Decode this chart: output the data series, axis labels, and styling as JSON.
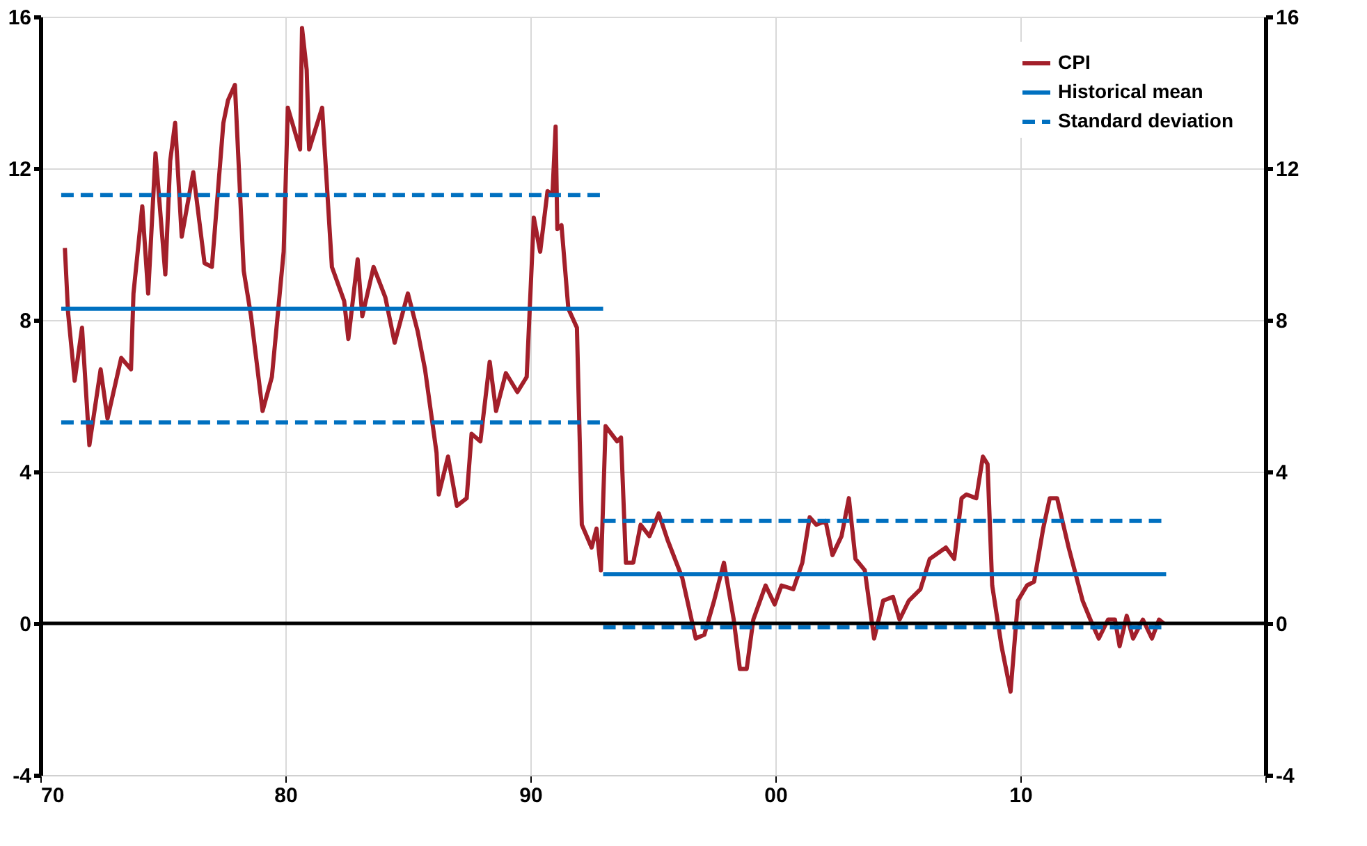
{
  "chart_data": {
    "type": "line",
    "xlim": [
      1970,
      2020
    ],
    "xticks": [
      {
        "value": 1970,
        "label": "70"
      },
      {
        "value": 1980,
        "label": "80"
      },
      {
        "value": 1990,
        "label": "90"
      },
      {
        "value": 2000,
        "label": "00"
      },
      {
        "value": 2010,
        "label": "10"
      },
      {
        "value": 2020,
        "label": null
      }
    ],
    "ylim": [
      -4,
      16
    ],
    "yticks": [
      -4,
      0,
      4,
      8,
      12,
      16
    ],
    "y2lim": [
      -4,
      16
    ],
    "y2ticks": [
      -4,
      0,
      4,
      8,
      12,
      16
    ],
    "grid": true,
    "legend": "top right",
    "marker": "none",
    "ref_lines": [
      {
        "axis": "y",
        "value": 0,
        "label": null,
        "color": "#000000"
      }
    ],
    "series": [
      {
        "name": "CPI",
        "color": "#a31f2a",
        "line_style": "solid",
        "x": [
          1971.0,
          1971.13,
          1971.4,
          1971.7,
          1972.0,
          1972.46,
          1972.74,
          1973.3,
          1973.7,
          1973.8,
          1974.16,
          1974.4,
          1974.7,
          1975.1,
          1975.3,
          1975.5,
          1975.77,
          1976.24,
          1976.7,
          1977.0,
          1977.47,
          1977.66,
          1977.94,
          1978.3,
          1978.6,
          1979.07,
          1979.45,
          1979.93,
          1980.1,
          1980.6,
          1980.68,
          1980.87,
          1980.97,
          1981.5,
          1981.9,
          1982.4,
          1982.57,
          1982.95,
          1983.14,
          1983.6,
          1984.08,
          1984.46,
          1985.0,
          1985.4,
          1985.7,
          1986.17,
          1986.26,
          1986.64,
          1987.0,
          1987.4,
          1987.6,
          1987.96,
          1988.34,
          1988.6,
          1989.0,
          1989.47,
          1989.85,
          1990.14,
          1990.4,
          1990.7,
          1990.9,
          1991.03,
          1991.1,
          1991.27,
          1991.55,
          1991.9,
          1992.1,
          1992.5,
          1992.7,
          1992.88,
          1993.07,
          1993.54,
          1993.7,
          1993.9,
          1994.2,
          1994.5,
          1994.86,
          1995.24,
          1995.6,
          1996.2,
          1996.75,
          1997.1,
          1997.5,
          1997.9,
          1998.3,
          1998.55,
          1998.83,
          1999.1,
          1999.6,
          1999.97,
          2000.25,
          2000.73,
          2001.1,
          2001.4,
          2001.67,
          2002.05,
          2002.33,
          2002.7,
          2003.0,
          2003.27,
          2003.65,
          2004.03,
          2004.4,
          2004.8,
          2005.07,
          2005.45,
          2005.92,
          2006.3,
          2006.96,
          2007.3,
          2007.6,
          2007.8,
          2008.2,
          2008.47,
          2008.66,
          2008.85,
          2009.23,
          2009.6,
          2009.9,
          2010.27,
          2010.56,
          2010.93,
          2011.2,
          2011.5,
          2011.97,
          2012.54,
          2012.92,
          2013.2,
          2013.58,
          2013.86,
          2014.05,
          2014.34,
          2014.6,
          2015.0,
          2015.37,
          2015.66,
          2015.85
        ],
        "values": [
          9.9,
          8.2,
          6.4,
          7.8,
          4.7,
          6.7,
          5.4,
          7.0,
          6.7,
          8.7,
          11.0,
          8.7,
          12.4,
          9.2,
          12.2,
          13.2,
          10.2,
          11.9,
          9.5,
          9.4,
          13.2,
          13.8,
          14.2,
          9.3,
          8.1,
          5.6,
          6.5,
          9.8,
          13.6,
          12.5,
          15.7,
          14.6,
          12.5,
          13.6,
          9.4,
          8.5,
          7.5,
          9.6,
          8.1,
          9.4,
          8.6,
          7.4,
          8.7,
          7.7,
          6.7,
          4.5,
          3.4,
          4.4,
          3.1,
          3.3,
          5.0,
          4.8,
          6.9,
          5.6,
          6.6,
          6.1,
          6.5,
          10.7,
          9.8,
          11.4,
          11.3,
          13.1,
          10.4,
          10.5,
          8.3,
          7.8,
          2.6,
          2.0,
          2.5,
          1.4,
          5.2,
          4.8,
          4.9,
          1.6,
          1.6,
          2.6,
          2.3,
          2.9,
          2.2,
          1.2,
          -0.4,
          -0.3,
          0.6,
          1.6,
          0.1,
          -1.2,
          -1.2,
          0.1,
          1.0,
          0.5,
          1.0,
          0.9,
          1.6,
          2.8,
          2.6,
          2.7,
          1.8,
          2.3,
          3.3,
          1.7,
          1.4,
          -0.4,
          0.6,
          0.7,
          0.1,
          0.6,
          0.9,
          1.7,
          2.0,
          1.7,
          3.3,
          3.4,
          3.3,
          4.4,
          4.2,
          1.0,
          -0.6,
          -1.8,
          0.6,
          1.0,
          1.1,
          2.5,
          3.3,
          3.3,
          2.0,
          0.6,
          0.0,
          -0.4,
          0.1,
          0.1,
          -0.6,
          0.2,
          -0.4,
          0.1,
          -0.4,
          0.1,
          0.0
        ]
      },
      {
        "name": "Historical mean",
        "color": "#0070c0",
        "line_style": "solid",
        "x": [
          1970.85,
          1992.97
        ],
        "values": [
          8.3,
          8.3
        ]
      },
      {
        "name": "Standard deviation",
        "color": "#0070c0",
        "line_style": "dashed",
        "x": [
          1970.85,
          1992.97
        ],
        "values": [
          11.3,
          11.3
        ]
      },
      {
        "color": "#0070c0",
        "line_style": "dashed",
        "x": [
          1970.85,
          1992.97
        ],
        "values": [
          5.3,
          5.3
        ]
      },
      {
        "color": "#0070c0",
        "line_style": "solid",
        "x": [
          1992.97,
          2015.95
        ],
        "values": [
          1.3,
          1.3
        ]
      },
      {
        "color": "#0070c0",
        "line_style": "dashed",
        "x": [
          1992.97,
          2015.95
        ],
        "values": [
          2.7,
          2.7
        ]
      },
      {
        "color": "#0070c0",
        "line_style": "dashed",
        "x": [
          1992.97,
          2015.95
        ],
        "values": [
          -0.1,
          -0.1
        ]
      }
    ]
  }
}
